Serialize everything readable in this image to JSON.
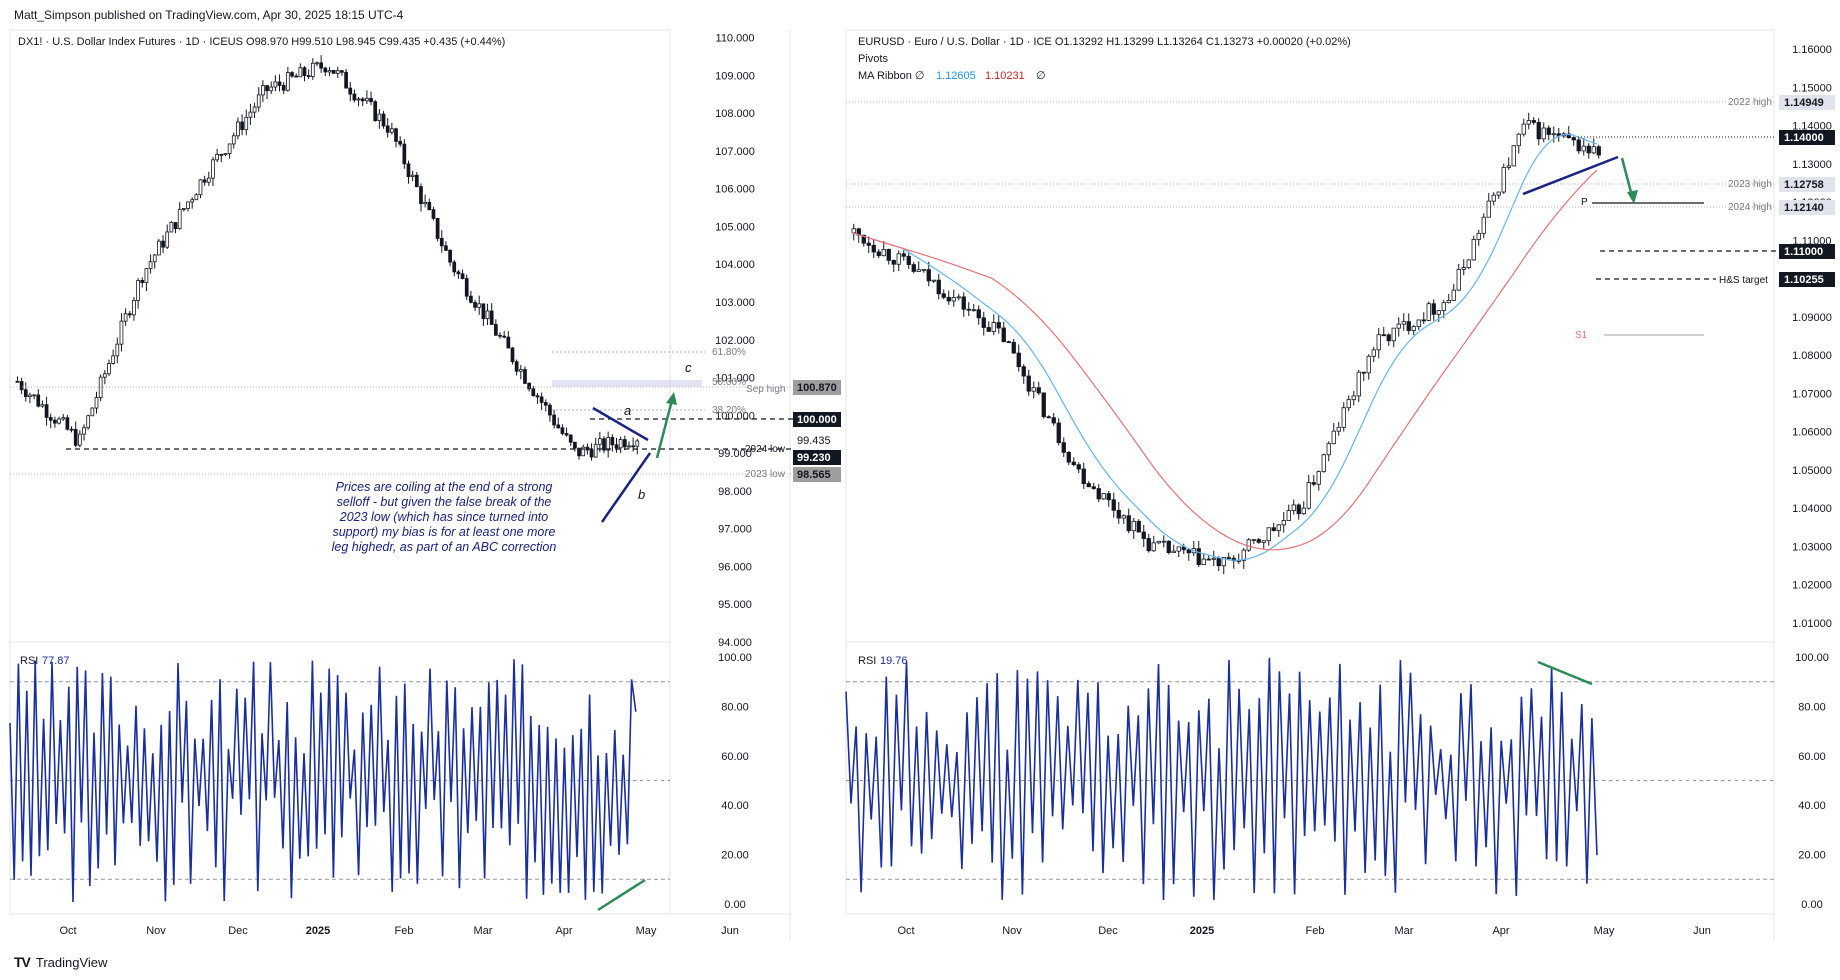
{
  "publisher": "Matt_Simpson published on TradingView.com, Apr 30, 2025 18:15 UTC-4",
  "footer": {
    "logo": "TV",
    "brand": "TradingView"
  },
  "left_chart": {
    "header": "DX1! · U.S. Dollar Index Futures · 1D · ICEUS   O98.970  H99.510  L98.945  C99.435  +0.435 (+0.44%)",
    "note": [
      "Prices are coiling at the end of a strong",
      "selloff - but given the false break of the",
      "2023 low (which has since turned into",
      "support) my bias is for at least one more",
      "leg highedr, as part of an ABC correction"
    ],
    "labels": {
      "fib618": "61.80%",
      "fib50": "50.00%",
      "fib382": "38.20%",
      "sep_high": "Sep high",
      "low2024": "2024 low",
      "low2023": "2023 low",
      "a": "a",
      "b": "b",
      "c": "c"
    },
    "price_tags": {
      "sep_high": "100.870",
      "round": "100.000",
      "last": "99.230",
      "low2023": "98.565",
      "close": "99.435"
    },
    "rsi_label": "RSI",
    "rsi_value": "77.87"
  },
  "right_chart": {
    "header": "EURUSD · Euro / U.S. Dollar · 1D · ICE   O1.13292  H1.13299  L1.13264  C1.13273  +0.00020 (+0.02%)",
    "pivots_label": "Pivots",
    "ma_label": "MA Ribbon  ∅",
    "ma_fast": "1.12605",
    "ma_slow": "1.10231",
    "ma_tail": "∅",
    "labels": {
      "high2022": "2022 high",
      "high2023": "2023 high",
      "high2024": "2024 high",
      "hs_target": "H&S target",
      "p": "P",
      "s1": "S1"
    },
    "price_tags": {
      "high2022": "1.14949",
      "level114": "1.14000",
      "high2023": "1.12758",
      "high2024": "1.12140",
      "level111": "1.11000",
      "hs_target": "1.10255"
    },
    "rsi_label": "RSI",
    "rsi_value": "19.76"
  },
  "colors": {
    "candle": "#131722",
    "rsi": "#1a2f9e",
    "ma_fast": "#64b5f6",
    "ma_slow": "#e57373",
    "arrow": "#2e8b57",
    "trendline": "#1a237e"
  },
  "chart_data": [
    {
      "type": "candlestick",
      "title": "DX1! · U.S. Dollar Index Futures · 1D · ICEUS",
      "x_ticks": [
        "Oct",
        "Nov",
        "Dec",
        "2025",
        "Feb",
        "Mar",
        "Apr",
        "May",
        "Jun"
      ],
      "y_ticks": [
        110.0,
        109.0,
        108.0,
        107.0,
        106.0,
        105.0,
        104.0,
        103.0,
        102.0,
        101.0,
        100.0,
        99.0,
        98.0,
        97.0,
        96.0,
        95.0,
        94.0
      ],
      "ylim": [
        94.0,
        110.2
      ],
      "key_closes": [
        {
          "x": "Sep",
          "value": 100.9
        },
        {
          "x": "Oct",
          "value": 99.3
        },
        {
          "x": "Nov",
          "value": 103.7
        },
        {
          "x": "Dec",
          "value": 106.3
        },
        {
          "x": "2025",
          "value": 108.6
        },
        {
          "x": "Jan",
          "value": 109.3
        },
        {
          "x": "Feb",
          "value": 107.6
        },
        {
          "x": "Mar",
          "value": 104.0
        },
        {
          "x": "Apr",
          "value": 101.5
        },
        {
          "x": "Apr mid",
          "value": 99.0
        },
        {
          "x": "Apr 30",
          "value": 99.435
        }
      ],
      "levels": {
        "fib_61.8": 101.5,
        "fib_50": 100.8,
        "sep_high": 100.87,
        "fib_38.2": 100.2,
        "round": 100.0,
        "low_2024": 99.23,
        "low_2023": 98.565
      },
      "rsi": {
        "label": "RSI",
        "value": 77.87,
        "y_ticks": [
          100.0,
          80.0,
          60.0,
          40.0,
          20.0,
          0.0
        ],
        "levels": [
          90,
          50,
          10
        ]
      }
    },
    {
      "type": "candlestick",
      "title": "EURUSD · Euro / U.S. Dollar · 1D · ICE",
      "x_ticks": [
        "Oct",
        "Nov",
        "Dec",
        "2025",
        "Feb",
        "Mar",
        "Apr",
        "May",
        "Jun"
      ],
      "y_ticks": [
        1.16,
        1.15,
        1.14,
        1.13,
        1.12,
        1.11,
        1.1,
        1.09,
        1.08,
        1.07,
        1.06,
        1.05,
        1.04,
        1.03,
        1.02,
        1.01
      ],
      "ylim": [
        1.005,
        1.165
      ],
      "key_closes": [
        {
          "x": "Sep",
          "value": 1.112
        },
        {
          "x": "Oct",
          "value": 1.1
        },
        {
          "x": "Nov",
          "value": 1.085
        },
        {
          "x": "Dec",
          "value": 1.05
        },
        {
          "x": "2025",
          "value": 1.03
        },
        {
          "x": "Jan",
          "value": 1.025
        },
        {
          "x": "Feb",
          "value": 1.04
        },
        {
          "x": "Mar",
          "value": 1.083
        },
        {
          "x": "Apr",
          "value": 1.095
        },
        {
          "x": "Apr mid",
          "value": 1.14
        },
        {
          "x": "Apr 30",
          "value": 1.13273
        }
      ],
      "levels": {
        "high_2022": 1.14949,
        "level": 1.14,
        "high_2023": 1.12758,
        "high_2024": 1.1214,
        "level_2": 1.11,
        "hs_target": 1.10255,
        "pivot_p": 1.122,
        "pivot_s1": 1.088
      },
      "ma_ribbon": {
        "fast": 1.12605,
        "slow": 1.10231
      },
      "rsi": {
        "label": "RSI",
        "value": 19.76,
        "y_ticks": [
          100.0,
          80.0,
          60.0,
          40.0,
          20.0,
          0.0
        ],
        "levels": [
          90,
          50,
          10
        ]
      }
    }
  ]
}
